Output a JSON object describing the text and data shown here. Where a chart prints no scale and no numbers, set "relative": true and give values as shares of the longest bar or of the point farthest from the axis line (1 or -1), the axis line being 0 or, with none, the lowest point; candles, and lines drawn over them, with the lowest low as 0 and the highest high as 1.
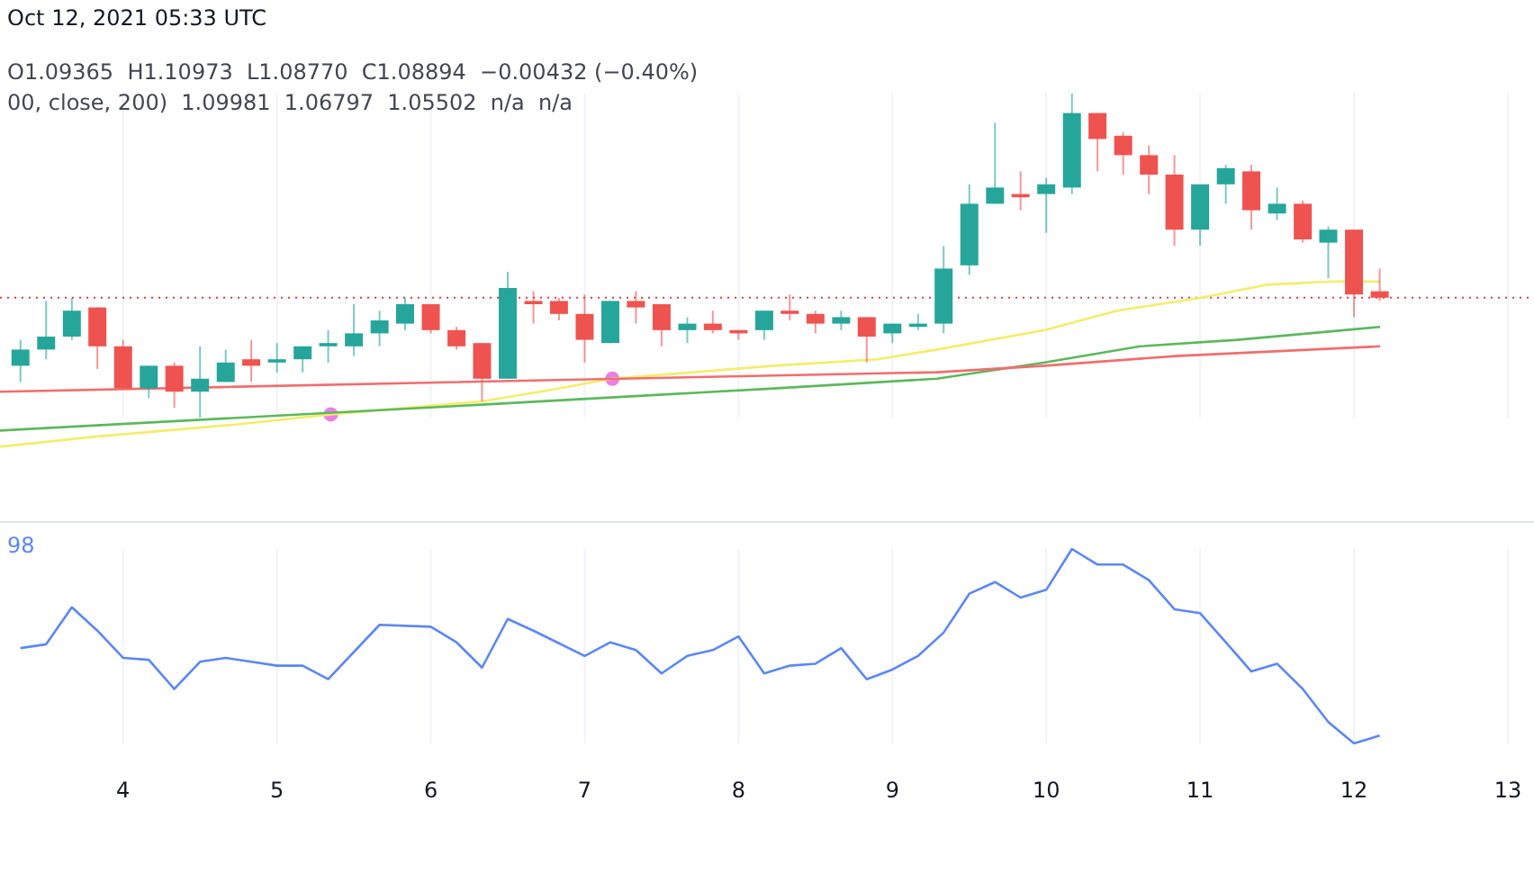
{
  "chart_data": [
    {
      "type": "candlestick",
      "relative": true,
      "xlim": [
        3.2,
        13.17
      ],
      "xticks": [
        4,
        5,
        6,
        7,
        8,
        9,
        10,
        11,
        12,
        13
      ],
      "tick_labels": false,
      "grid": "x",
      "annotations": [
        "Oct 12, 2021 05:33 UTC",
        "O1.09365  H1.10973  L1.08770  C1.08894  −0.00432 (−0.40%)",
        "00, close, 200)  1.09981  1.06797  1.05502  n/a  n/a"
      ],
      "ref_lines": [
        {
          "axis": "y",
          "value": 0.37,
          "color": "#f23645",
          "line_style": "dotted"
        }
      ],
      "x": [
        3.333,
        3.5,
        3.667,
        3.833,
        4,
        4.167,
        4.333,
        4.5,
        4.667,
        4.833,
        5,
        5.167,
        5.333,
        5.5,
        5.667,
        5.833,
        6,
        6.167,
        6.333,
        6.5,
        6.667,
        6.833,
        7,
        7.167,
        7.333,
        7.5,
        7.667,
        7.833,
        8,
        8.167,
        8.333,
        8.5,
        8.667,
        8.833,
        9,
        9.167,
        9.333,
        9.5,
        9.667,
        9.833,
        10,
        10.167,
        10.333,
        10.5,
        10.667,
        10.833,
        11,
        11.167,
        11.333,
        11.5,
        11.667,
        11.833,
        12,
        12.167
      ],
      "ohlc": [
        [
          0.16,
          0.24,
          0.11,
          0.21
        ],
        [
          0.21,
          0.36,
          0.18,
          0.25
        ],
        [
          0.25,
          0.37,
          0.24,
          0.33
        ],
        [
          0.34,
          0.34,
          0.15,
          0.22
        ],
        [
          0.22,
          0.24,
          0.09,
          0.09
        ],
        [
          0.09,
          0.16,
          0.06,
          0.16
        ],
        [
          0.16,
          0.17,
          0.03,
          0.08
        ],
        [
          0.08,
          0.22,
          0,
          0.12
        ],
        [
          0.11,
          0.21,
          0.11,
          0.17
        ],
        [
          0.18,
          0.24,
          0.11,
          0.16
        ],
        [
          0.17,
          0.23,
          0.14,
          0.18
        ],
        [
          0.18,
          0.22,
          0.14,
          0.22
        ],
        [
          0.22,
          0.27,
          0.17,
          0.23
        ],
        [
          0.22,
          0.35,
          0.19,
          0.26
        ],
        [
          0.26,
          0.33,
          0.22,
          0.3
        ],
        [
          0.29,
          0.37,
          0.27,
          0.35
        ],
        [
          0.35,
          0.35,
          0.26,
          0.27
        ],
        [
          0.27,
          0.28,
          0.21,
          0.22
        ],
        [
          0.23,
          0.23,
          0.05,
          0.12
        ],
        [
          0.12,
          0.45,
          0.12,
          0.4
        ],
        [
          0.36,
          0.39,
          0.29,
          0.35
        ],
        [
          0.36,
          0.37,
          0.3,
          0.32
        ],
        [
          0.32,
          0.38,
          0.17,
          0.24
        ],
        [
          0.23,
          0.36,
          0.23,
          0.36
        ],
        [
          0.36,
          0.39,
          0.29,
          0.34
        ],
        [
          0.35,
          0.35,
          0.22,
          0.27
        ],
        [
          0.27,
          0.31,
          0.23,
          0.29
        ],
        [
          0.29,
          0.33,
          0.26,
          0.27
        ],
        [
          0.27,
          0.27,
          0.24,
          0.26
        ],
        [
          0.27,
          0.33,
          0.24,
          0.33
        ],
        [
          0.33,
          0.38,
          0.3,
          0.32
        ],
        [
          0.32,
          0.33,
          0.26,
          0.29
        ],
        [
          0.29,
          0.33,
          0.27,
          0.31
        ],
        [
          0.31,
          0.31,
          0.17,
          0.25
        ],
        [
          0.26,
          0.29,
          0.23,
          0.29
        ],
        [
          0.28,
          0.32,
          0.27,
          0.29
        ],
        [
          0.29,
          0.53,
          0.26,
          0.46
        ],
        [
          0.47,
          0.72,
          0.44,
          0.66
        ],
        [
          0.66,
          0.91,
          0.66,
          0.71
        ],
        [
          0.69,
          0.76,
          0.64,
          0.68
        ],
        [
          0.69,
          0.74,
          0.57,
          0.72
        ],
        [
          0.71,
          1,
          0.69,
          0.94
        ],
        [
          0.94,
          0.94,
          0.76,
          0.86
        ],
        [
          0.87,
          0.88,
          0.75,
          0.81
        ],
        [
          0.81,
          0.84,
          0.69,
          0.75
        ],
        [
          0.75,
          0.81,
          0.53,
          0.58
        ],
        [
          0.58,
          0.72,
          0.53,
          0.72
        ],
        [
          0.72,
          0.78,
          0.66,
          0.77
        ],
        [
          0.76,
          0.78,
          0.58,
          0.64
        ],
        [
          0.63,
          0.71,
          0.61,
          0.66
        ],
        [
          0.66,
          0.67,
          0.54,
          0.55
        ],
        [
          0.54,
          0.59,
          0.43,
          0.58
        ],
        [
          0.58,
          0.58,
          0.31,
          0.38
        ],
        [
          0.39,
          0.46,
          0.36,
          0.37
        ]
      ],
      "series": [
        {
          "type": "line",
          "color": "#f5ec6a",
          "x": [
            3.2,
            3.79,
            4.76,
            5.35,
            6.33,
            6.71,
            7.18,
            8.23,
            8.9,
            9.29,
            9.99,
            10.46,
            11.01,
            11.43,
            11.86,
            12.17
          ],
          "values": [
            -0.09,
            -0.06,
            -0.02,
            0.01,
            0.05,
            0.08,
            0.12,
            0.16,
            0.18,
            0.21,
            0.27,
            0.33,
            0.37,
            0.41,
            0.42,
            0.42
          ]
        },
        {
          "type": "line",
          "color": "#5cb85c",
          "x": [
            3.2,
            6.33,
            8.23,
            9.29,
            9.99,
            10.61,
            11.24,
            12.17
          ],
          "values": [
            -0.04,
            0.04,
            0.09,
            0.12,
            0.17,
            0.22,
            0.24,
            0.28
          ]
        },
        {
          "type": "line",
          "color": "#f26d6d",
          "x": [
            3.2,
            8.23,
            9.29,
            9.99,
            10.84,
            12.17
          ],
          "values": [
            0.08,
            0.13,
            0.14,
            0.16,
            0.19,
            0.22
          ]
        },
        {
          "type": "scatter",
          "color": "#ea7fe6",
          "marker": "circle",
          "x": [
            5.35,
            7.18
          ],
          "values": [
            0.01,
            0.12
          ]
        }
      ]
    },
    {
      "type": "line",
      "relative": true,
      "xlim": [
        3.2,
        13.17
      ],
      "xticks": [
        4,
        5,
        6,
        7,
        8,
        9,
        10,
        11,
        12,
        13
      ],
      "tick_labels": "x",
      "grid": "x",
      "annotations": [
        "98"
      ],
      "series": [
        {
          "color": "#5b87f5",
          "x": [
            3.333,
            3.5,
            3.667,
            3.833,
            4,
            4.167,
            4.333,
            4.5,
            4.667,
            4.833,
            5,
            5.167,
            5.333,
            5.667,
            6,
            6.167,
            6.333,
            6.5,
            6.667,
            7,
            7.167,
            7.333,
            7.5,
            7.667,
            7.833,
            8,
            8.167,
            8.333,
            8.5,
            8.667,
            8.833,
            9,
            9.167,
            9.333,
            9.5,
            9.667,
            9.833,
            10,
            10.167,
            10.333,
            10.5,
            10.667,
            10.833,
            11,
            11.167,
            11.333,
            11.5,
            11.667,
            11.833,
            12,
            12.167
          ],
          "values": [
            0.49,
            0.51,
            0.7,
            0.58,
            0.44,
            0.43,
            0.28,
            0.42,
            0.44,
            0.42,
            0.4,
            0.4,
            0.33,
            0.61,
            0.6,
            0.52,
            0.39,
            0.64,
            0.58,
            0.45,
            0.52,
            0.48,
            0.36,
            0.45,
            0.48,
            0.55,
            0.36,
            0.4,
            0.41,
            0.49,
            0.33,
            0.38,
            0.45,
            0.57,
            0.77,
            0.83,
            0.75,
            0.79,
            1,
            0.92,
            0.92,
            0.84,
            0.69,
            0.67,
            0.52,
            0.37,
            0.41,
            0.28,
            0.11,
            0,
            0.04
          ]
        }
      ]
    }
  ]
}
